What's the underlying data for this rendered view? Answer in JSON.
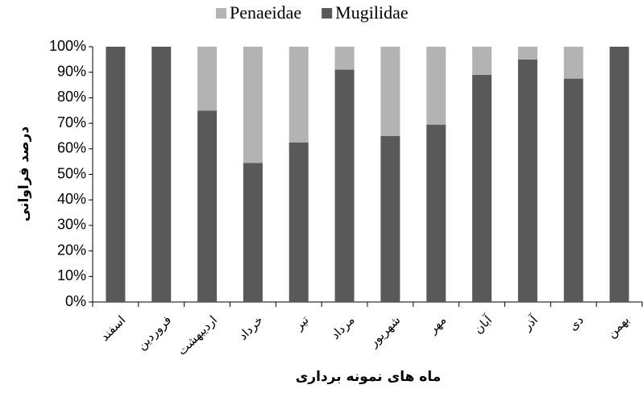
{
  "chart_data": {
    "type": "stacked_bar",
    "categories": [
      "اسفند",
      "فروردین",
      "اردیبهشت",
      "خرداد",
      "تیر",
      "مرداد",
      "شهریور",
      "مهر",
      "آبان",
      "آذر",
      "دی",
      "بهمن"
    ],
    "series": [
      {
        "name": "Mugilidae",
        "color": "#595959",
        "values": [
          100,
          100,
          75,
          54.5,
          62.5,
          91,
          65,
          69.5,
          89,
          95,
          87.5,
          100
        ]
      },
      {
        "name": "Penaeidae",
        "color": "#b3b3b3",
        "values": [
          0,
          0,
          25,
          45.5,
          37.5,
          9,
          35,
          30.5,
          11,
          5,
          12.5,
          0
        ]
      }
    ],
    "ylim": [
      0,
      100
    ],
    "yticks": [
      {
        "value": 0,
        "label": "0%"
      },
      {
        "value": 10,
        "label": "10%"
      },
      {
        "value": 20,
        "label": "20%"
      },
      {
        "value": 30,
        "label": "30%"
      },
      {
        "value": 40,
        "label": "40%"
      },
      {
        "value": 50,
        "label": "50%"
      },
      {
        "value": 60,
        "label": "60%"
      },
      {
        "value": 70,
        "label": "70%"
      },
      {
        "value": 80,
        "label": "80%"
      },
      {
        "value": 90,
        "label": "90%"
      },
      {
        "value": 100,
        "label": "100%"
      }
    ],
    "y_label": "درصد فراوانی",
    "x_label": "ماه های نمونه برداری",
    "legend": "top"
  }
}
